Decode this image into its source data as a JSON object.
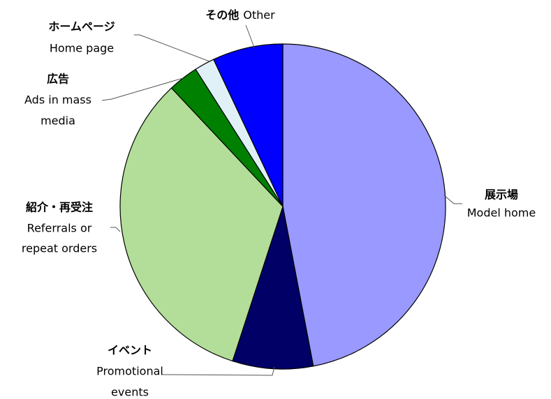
{
  "chart_data": {
    "type": "pie",
    "categories": [
      "展示場",
      "イベント",
      "紹介・再受注",
      "広告",
      "ホームページ",
      "その他"
    ],
    "english_labels": [
      [
        "Model home"
      ],
      [
        "Promotional",
        "events"
      ],
      [
        "Referrals or",
        "repeat orders"
      ],
      [
        "Ads in mass",
        "media"
      ],
      [
        "Home page"
      ],
      [
        "Other"
      ]
    ],
    "values": [
      47,
      8,
      33,
      3,
      2,
      7
    ],
    "colors": [
      "#9999ff",
      "#000066",
      "#b3de99",
      "#008000",
      "#dff1f7",
      "#0000ff"
    ]
  }
}
